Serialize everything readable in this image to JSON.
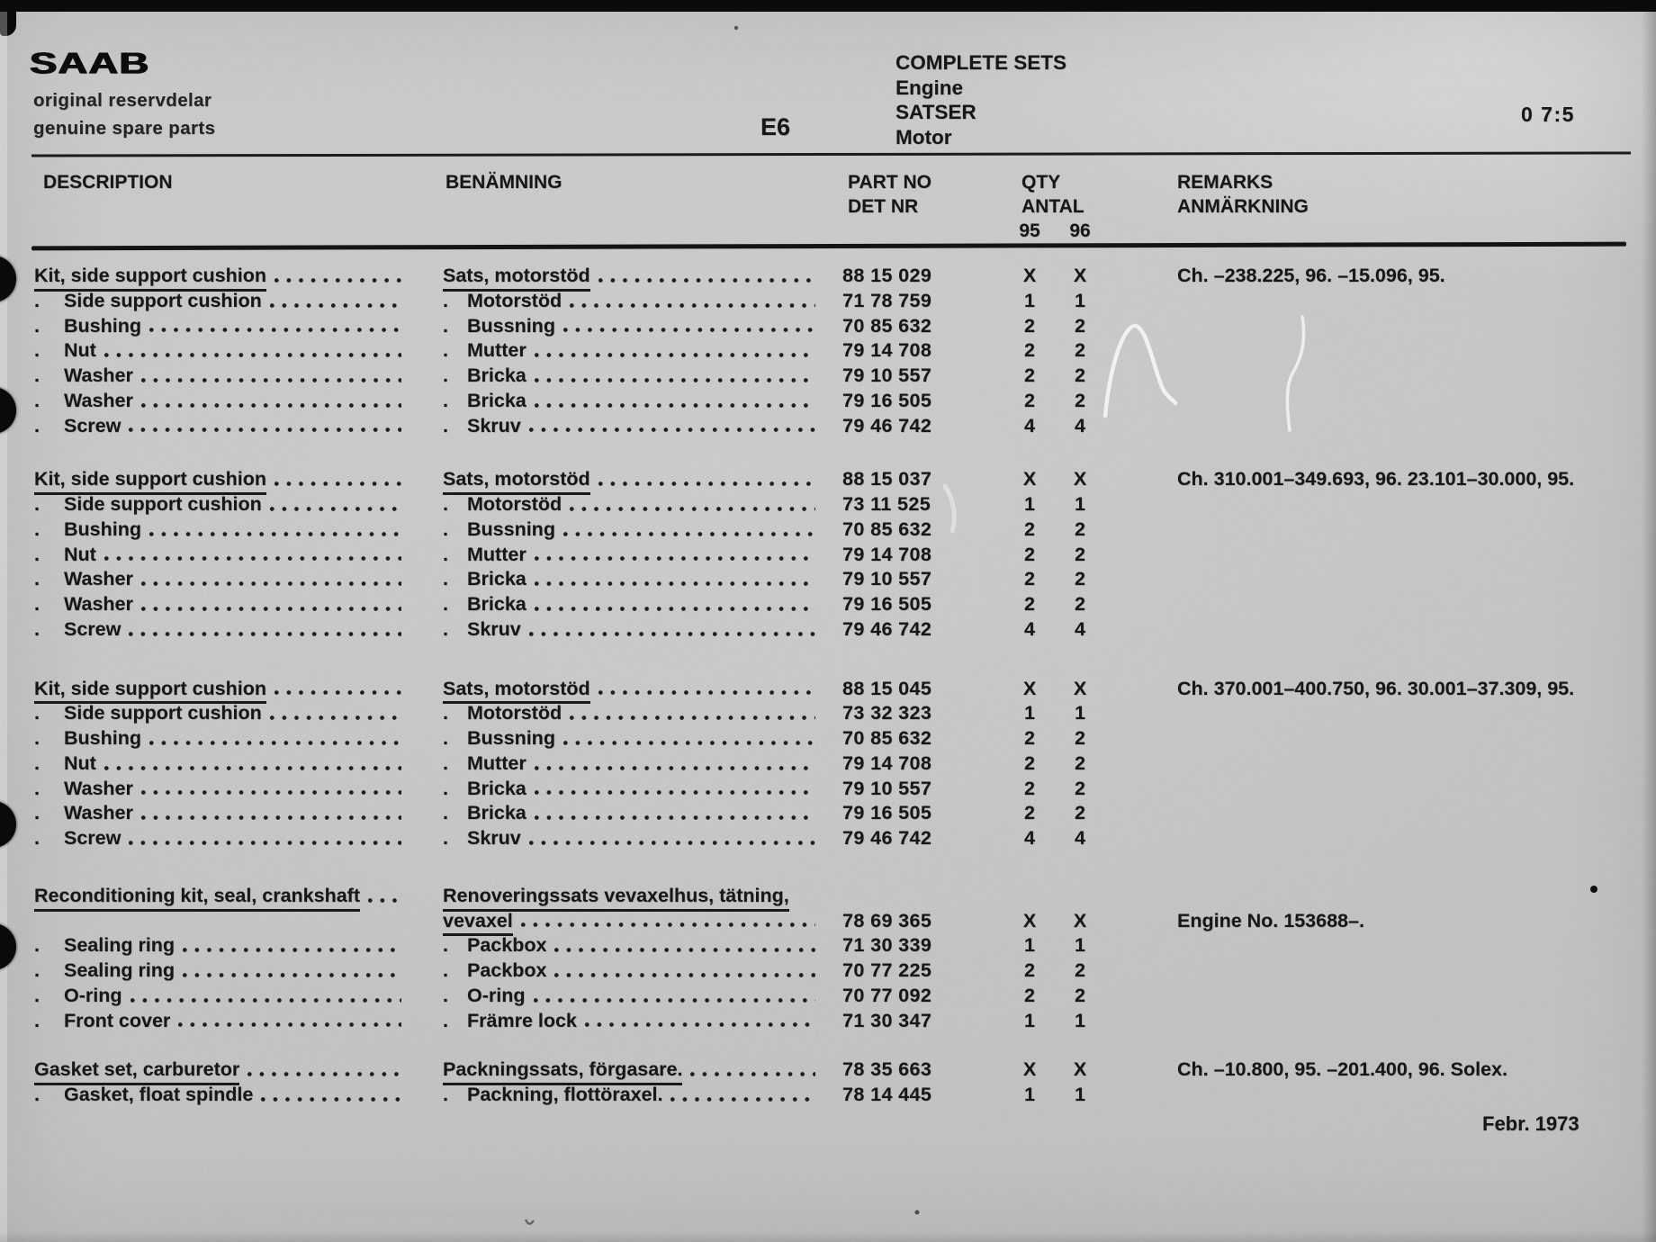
{
  "page": {
    "section_code": "E6",
    "page_ref": "0 7:5",
    "footer_date": "Febr. 1973"
  },
  "logo": {
    "brand": "SAAB",
    "sub_sv": "original reservdelar",
    "sub_en": "genuine spare parts"
  },
  "title_block": {
    "en_title": "COMPLETE SETS",
    "en_sub": "Engine",
    "sv_title": "SATSER",
    "sv_sub": "Motor"
  },
  "columns": {
    "description": "DESCRIPTION",
    "benamning": "BENÄMNING",
    "part_no": "PART NO",
    "det_nr": "DET NR",
    "qty": "QTY",
    "antal": "ANTAL",
    "year_95": "95",
    "year_96": "96",
    "remarks": "REMARKS",
    "anmarkning": "ANMÄRKNING"
  },
  "table": {
    "sub_item_marker": "."
  },
  "groups": [
    {
      "rows": [
        {
          "desc": "Kit, side support cushion",
          "ben": "Sats, motorstöd",
          "part": "88 15 029",
          "q95": "X",
          "q96": "X",
          "remark": "Ch. –238.225, 96. –15.096, 95.",
          "du": true,
          "bu": true
        },
        {
          "desc": "Side support cushion",
          "ben": "Motorstöd",
          "part": "71 78 759",
          "q95": "1",
          "q96": "1",
          "sub": true
        },
        {
          "desc": "Bushing",
          "ben": "Bussning",
          "part": "70 85 632",
          "q95": "2",
          "q96": "2",
          "sub": true
        },
        {
          "desc": "Nut",
          "ben": "Mutter",
          "part": "79 14 708",
          "q95": "2",
          "q96": "2",
          "sub": true
        },
        {
          "desc": "Washer",
          "ben": "Bricka",
          "part": "79 10 557",
          "q95": "2",
          "q96": "2",
          "sub": true
        },
        {
          "desc": "Washer",
          "ben": "Bricka",
          "part": "79 16 505",
          "q95": "2",
          "q96": "2",
          "sub": true
        },
        {
          "desc": "Screw",
          "ben": "Skruv",
          "part": "79 46 742",
          "q95": "4",
          "q96": "4",
          "sub": true
        }
      ]
    },
    {
      "rows": [
        {
          "desc": "Kit, side support cushion",
          "ben": "Sats, motorstöd",
          "part": "88 15 037",
          "q95": "X",
          "q96": "X",
          "remark": "Ch. 310.001–349.693, 96. 23.101–30.000, 95.",
          "du": true,
          "bu": true
        },
        {
          "desc": "Side support cushion",
          "ben": "Motorstöd",
          "part": "73 11 525",
          "q95": "1",
          "q96": "1",
          "sub": true
        },
        {
          "desc": "Bushing",
          "ben": "Bussning",
          "part": "70 85 632",
          "q95": "2",
          "q96": "2",
          "sub": true
        },
        {
          "desc": "Nut",
          "ben": "Mutter",
          "part": "79 14 708",
          "q95": "2",
          "q96": "2",
          "sub": true
        },
        {
          "desc": "Washer",
          "ben": "Bricka",
          "part": "79 10 557",
          "q95": "2",
          "q96": "2",
          "sub": true
        },
        {
          "desc": "Washer",
          "ben": "Bricka",
          "part": "79 16 505",
          "q95": "2",
          "q96": "2",
          "sub": true
        },
        {
          "desc": "Screw",
          "ben": "Skruv",
          "part": "79 46 742",
          "q95": "4",
          "q96": "4",
          "sub": true
        }
      ]
    },
    {
      "rows": [
        {
          "desc": "Kit, side support cushion",
          "ben": "Sats, motorstöd",
          "part": "88 15 045",
          "q95": "X",
          "q96": "X",
          "remark": "Ch. 370.001–400.750, 96. 30.001–37.309, 95.",
          "du": true,
          "bu": true
        },
        {
          "desc": "Side support cushion",
          "ben": "Motorstöd",
          "part": "73 32 323",
          "q95": "1",
          "q96": "1",
          "sub": true
        },
        {
          "desc": "Bushing",
          "ben": "Bussning",
          "part": "70 85 632",
          "q95": "2",
          "q96": "2",
          "sub": true
        },
        {
          "desc": "Nut",
          "ben": "Mutter",
          "part": "79 14 708",
          "q95": "2",
          "q96": "2",
          "sub": true
        },
        {
          "desc": "Washer",
          "ben": "Bricka",
          "part": "79 10 557",
          "q95": "2",
          "q96": "2",
          "sub": true
        },
        {
          "desc": "Washer",
          "ben": "Bricka",
          "part": "79 16 505",
          "q95": "2",
          "q96": "2",
          "sub": true
        },
        {
          "desc": "Screw",
          "ben": "Skruv",
          "part": "79 46 742",
          "q95": "4",
          "q96": "4",
          "sub": true
        }
      ]
    },
    {
      "rows": [
        {
          "desc": "Reconditioning kit, seal, crankshaft",
          "ben": "Renoveringssats vevaxelhus, tätning,",
          "part": "",
          "q95": "",
          "q96": "",
          "remark": "",
          "du": true,
          "bu": true,
          "bl": false
        },
        {
          "desc": "",
          "ben": "vevaxel",
          "part": "78 69 365",
          "q95": "X",
          "q96": "X",
          "remark": "Engine No. 153688–.",
          "bu": true
        },
        {
          "desc": "Sealing ring",
          "ben": "Packbox",
          "part": "71 30 339",
          "q95": "1",
          "q96": "1",
          "sub": true
        },
        {
          "desc": "Sealing ring",
          "ben": "Packbox",
          "part": "70 77 225",
          "q95": "2",
          "q96": "2",
          "sub": true
        },
        {
          "desc": "O-ring",
          "ben": "O-ring",
          "part": "70 77 092",
          "q95": "2",
          "q96": "2",
          "sub": true
        },
        {
          "desc": "Front cover",
          "ben": "Främre lock",
          "part": "71 30 347",
          "q95": "1",
          "q96": "1",
          "sub": true
        }
      ]
    },
    {
      "rows": [
        {
          "desc": "Gasket set, carburetor",
          "ben": "Packningssats, förgasare.",
          "part": "78 35 663",
          "q95": "X",
          "q96": "X",
          "remark": "Ch. –10.800, 95. –201.400, 96. Solex.",
          "du": true,
          "bu": true
        },
        {
          "desc": "Gasket, float spindle",
          "ben": "Packning, flottöraxel.",
          "part": "78 14 445",
          "q95": "1",
          "q96": "1",
          "sub": true
        }
      ]
    }
  ]
}
